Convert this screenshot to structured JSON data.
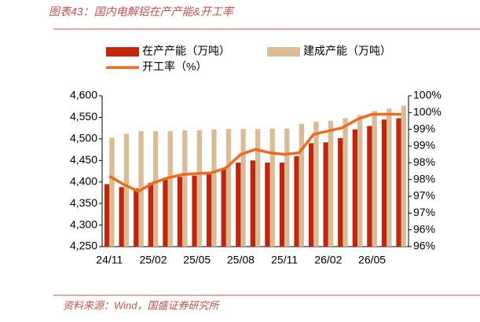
{
  "chart_data": {
    "type": "bar_line",
    "title": "图表43：国内电解铝在产产能&开工率",
    "source": "资料来源：Wind，国盛证券研究所",
    "categories": [
      "24/11",
      null,
      null,
      "25/02",
      null,
      null,
      "25/05",
      null,
      null,
      "25/08",
      null,
      null,
      "25/11",
      null,
      null,
      "26/02",
      null,
      null,
      "26/05",
      null,
      null
    ],
    "series": [
      {
        "name": "在产产能（万吨）",
        "color": "#c0260d",
        "kind": "bar",
        "values": [
          4395,
          4388,
          4385,
          4398,
          4405,
          4412,
          4415,
          4418,
          4430,
          4445,
          4450,
          4445,
          4445,
          4460,
          4490,
          4492,
          4502,
          4522,
          4530,
          4545,
          4548
        ]
      },
      {
        "name": "建成产能（万吨）",
        "color": "#d9bc96",
        "kind": "bar",
        "values": [
          4503,
          4512,
          4518,
          4518,
          4518,
          4520,
          4520,
          4522,
          4523,
          4523,
          4523,
          4524,
          4524,
          4535,
          4540,
          4542,
          4548,
          4555,
          4565,
          4570,
          4577
        ]
      },
      {
        "name": "开工率（%）",
        "color": "#ee6a1e",
        "kind": "line",
        "axis": "y2",
        "values": [
          97.6,
          97.35,
          97.15,
          97.4,
          97.55,
          97.65,
          97.68,
          97.7,
          97.85,
          98.25,
          98.4,
          98.3,
          98.25,
          98.3,
          98.85,
          98.95,
          99.05,
          99.3,
          99.45,
          99.45,
          99.45
        ]
      }
    ],
    "ylim": [
      4250,
      4600
    ],
    "yticks": [
      {
        "value": 4250,
        "label": "4,250"
      },
      {
        "value": 4300,
        "label": "4,300"
      },
      {
        "value": 4350,
        "label": "4,350"
      },
      {
        "value": 4400,
        "label": "4,400"
      },
      {
        "value": 4450,
        "label": "4,450"
      },
      {
        "value": 4500,
        "label": "4,500"
      },
      {
        "value": 4550,
        "label": "4,550"
      },
      {
        "value": 4600,
        "label": "4,600"
      }
    ],
    "y2lim": [
      95.5,
      100
    ],
    "y2ticks": [
      {
        "value": 95.5,
        "label": "96%"
      },
      {
        "value": 96,
        "label": "96%"
      },
      {
        "value": 96.5,
        "label": "97%"
      },
      {
        "value": 97,
        "label": "97%"
      },
      {
        "value": 97.5,
        "label": "98%"
      },
      {
        "value": 98,
        "label": "98%"
      },
      {
        "value": 98.5,
        "label": "99%"
      },
      {
        "value": 99,
        "label": "99%"
      },
      {
        "value": 99.5,
        "label": "100%"
      },
      {
        "value": 100,
        "label": "100%"
      }
    ],
    "grid": false,
    "legend": "top"
  }
}
